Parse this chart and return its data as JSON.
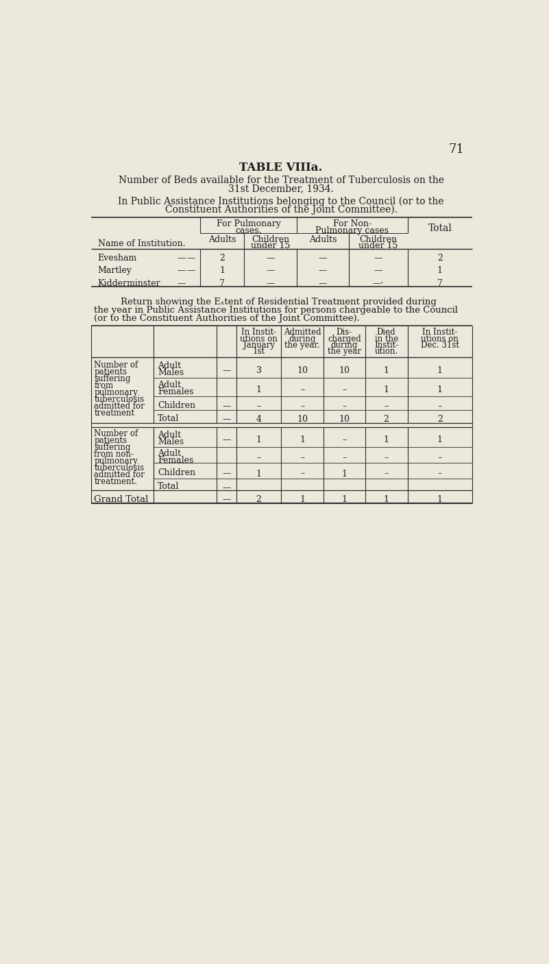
{
  "bg_color": "#ede8dc",
  "text_color": "#1a1a1a",
  "page_number": "71",
  "title": "TABLE VIIIa.",
  "subtitle1": "Number of Beds available for the Treatment of Tuberculosis on the",
  "subtitle2": "31st December, 1934.",
  "subtitle3": "In Public Assistance Institutions belonging to the Council (or to the",
  "subtitle4": "Constituent Authorities of the Joint Committee).",
  "table1_col_header": "Name of Institution.",
  "table1_rows": [
    [
      "Evesham",
      "—",
      "—",
      "2",
      "—",
      "—",
      "—",
      "2"
    ],
    [
      "Martley",
      "—",
      "—",
      "1",
      "—",
      "—",
      "—",
      "1"
    ],
    [
      "Kidderminster",
      "—",
      "",
      "7",
      "—",
      "—",
      "—·",
      "7"
    ]
  ],
  "return_text": [
    "Return showing the Eₓtent of Residential Treatment provided during",
    "the year in Public Assistance Institutions for persons chargeable to the Council",
    "(or to the Constituent Authorities of the Joint Committee)."
  ],
  "table2_col_headers": [
    "In Instit-\nutions on\nJanuary\n1st",
    "Admitted\nduring\nthe year.",
    "Dis-\ncharged\nduring\nthe year",
    "Died\nin the\nInstit-\nution.",
    "In Instit-\nutions on\nDec. 31st"
  ],
  "table2_section1_label": [
    "Number of",
    "patients",
    "suffering",
    "from",
    "pulmonary",
    "tuberculosis",
    "admitted for",
    "treatment"
  ],
  "table2_section2_label": [
    "Number of",
    "patients",
    "suffering",
    "from non-",
    "pulmonary",
    "tuberculosis",
    "admitted for",
    "treatment."
  ],
  "grand_total_row": [
    "Grand Total",
    "—",
    "2",
    "1",
    "1",
    "1",
    "1"
  ]
}
